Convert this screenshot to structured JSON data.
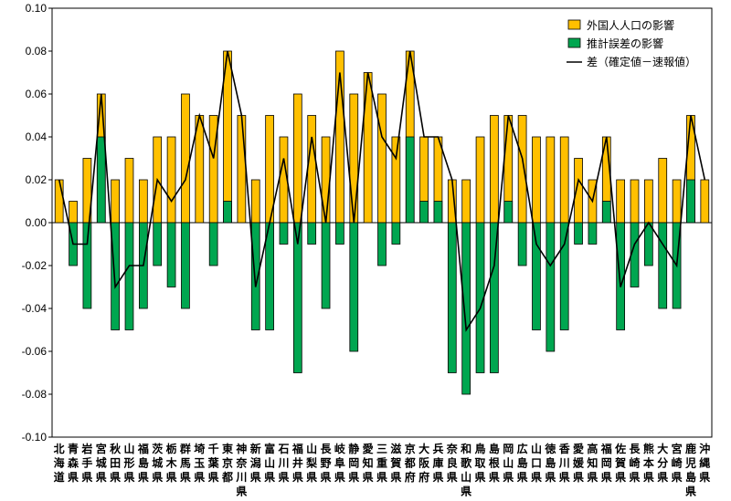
{
  "chart_data": {
    "type": "bar",
    "ylim": [
      -0.1,
      0.1
    ],
    "yticks": [
      "0.10",
      "0.08",
      "0.06",
      "0.04",
      "0.02",
      "0.00",
      "-0.02",
      "-0.04",
      "-0.06",
      "-0.08",
      "-0.10"
    ],
    "categories": [
      "北海道",
      "青森県",
      "岩手県",
      "宮城県",
      "秋田県",
      "山形県",
      "福島県",
      "茨城県",
      "栃木県",
      "群馬県",
      "埼玉県",
      "千葉県",
      "東京都",
      "神奈川県",
      "新潟県",
      "富山県",
      "石川県",
      "福井県",
      "山梨県",
      "長野県",
      "岐阜県",
      "静岡県",
      "愛知県",
      "三重県",
      "滋賀県",
      "京都府",
      "大阪府",
      "兵庫県",
      "奈良県",
      "和歌山県",
      "鳥取県",
      "島根県",
      "岡山県",
      "広島県",
      "山口県",
      "徳島県",
      "香川県",
      "愛媛県",
      "高知県",
      "福岡県",
      "佐賀県",
      "長崎県",
      "熊本県",
      "大分県",
      "宮崎県",
      "鹿児島県",
      "沖縄県"
    ],
    "legend_position": "top-right",
    "colors": {
      "foreign": "#FFC000",
      "estimate": "#00A650",
      "line": "#000000"
    },
    "series": [
      {
        "name": "外国人人口の影響",
        "kind": "bar",
        "values": [
          0.02,
          0.01,
          0.03,
          0.06,
          0.02,
          0.03,
          0.02,
          0.04,
          0.04,
          0.06,
          0.05,
          0.05,
          0.08,
          0.05,
          0.02,
          0.05,
          0.04,
          0.06,
          0.05,
          0.04,
          0.08,
          0.06,
          0.07,
          0.06,
          0.04,
          0.08,
          0.04,
          0.04,
          0.02,
          0.02,
          0.04,
          0.05,
          0.05,
          0.05,
          0.04,
          0.04,
          0.04,
          0.03,
          0.02,
          0.04,
          0.02,
          0.02,
          0.02,
          0.03,
          0.02,
          0.05,
          0.02
        ]
      },
      {
        "name": "推計誤差の影響",
        "kind": "bar",
        "values": [
          0,
          -0.02,
          -0.04,
          0.04,
          -0.05,
          -0.05,
          -0.04,
          -0.02,
          -0.03,
          -0.04,
          0,
          -0.02,
          0.01,
          0,
          -0.05,
          -0.05,
          -0.01,
          -0.07,
          -0.01,
          -0.04,
          -0.01,
          -0.06,
          0,
          -0.02,
          -0.01,
          0.04,
          0.01,
          0.01,
          -0.07,
          -0.08,
          -0.07,
          -0.07,
          0.01,
          -0.02,
          -0.05,
          -0.06,
          -0.05,
          -0.01,
          -0.01,
          0.01,
          -0.05,
          -0.03,
          -0.02,
          -0.04,
          -0.04,
          0.02,
          0
        ]
      },
      {
        "name": "差（確定値－速報値）",
        "kind": "line",
        "values": [
          0.02,
          -0.01,
          -0.01,
          0.06,
          -0.03,
          -0.02,
          -0.02,
          0.02,
          0.01,
          0.02,
          0.05,
          0.03,
          0.08,
          0.05,
          -0.03,
          0.0,
          0.03,
          -0.01,
          0.04,
          0.0,
          0.07,
          0.0,
          0.07,
          0.04,
          0.03,
          0.08,
          0.04,
          0.04,
          0.02,
          -0.05,
          -0.04,
          -0.02,
          0.05,
          0.03,
          -0.01,
          -0.02,
          -0.01,
          0.02,
          0.01,
          0.04,
          -0.03,
          -0.01,
          0.0,
          -0.01,
          -0.02,
          0.05,
          0.02
        ]
      }
    ]
  }
}
